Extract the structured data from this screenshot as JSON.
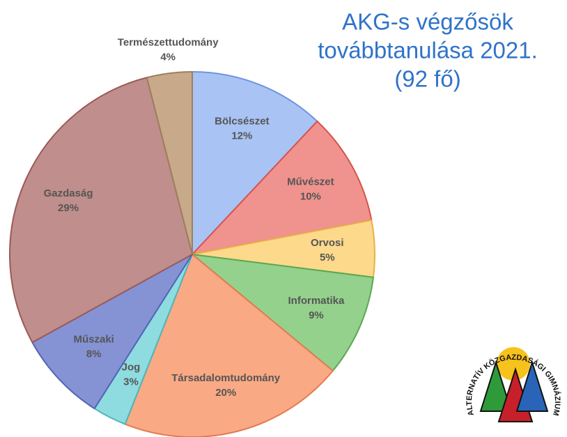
{
  "chart_data": {
    "type": "pie",
    "title": [
      "AKG-s végzősök",
      "továbbtanulása 2021.",
      "(92 fő)"
    ],
    "categories": [
      "Bölcsészet",
      "Művészet",
      "Orvosi",
      "Informatika",
      "Társadalomtudomány",
      "Jog",
      "Műszaki",
      "Gazdaság",
      "Természettudomány"
    ],
    "values": [
      12,
      10,
      5,
      9,
      20,
      3,
      8,
      29,
      4
    ],
    "value_labels": [
      "12%",
      "10%",
      "5%",
      "9%",
      "20%",
      "3%",
      "8%",
      "29%",
      "4%"
    ],
    "colors": [
      "#a9c3f4",
      "#f0938f",
      "#fcd98b",
      "#94d18c",
      "#f9a984",
      "#8edcdf",
      "#8593d5",
      "#c08e8c",
      "#c8aa8a"
    ],
    "edge_colors": [
      "#6f95dd",
      "#d6524c",
      "#e7b04a",
      "#5aa852",
      "#e47a4f",
      "#4cb5ba",
      "#5363b5",
      "#9a5a58",
      "#9c7f5e"
    ]
  },
  "logo_text": "ALTERNATÍV KÖZGAZDASÁGI GIMNÁZIUM"
}
